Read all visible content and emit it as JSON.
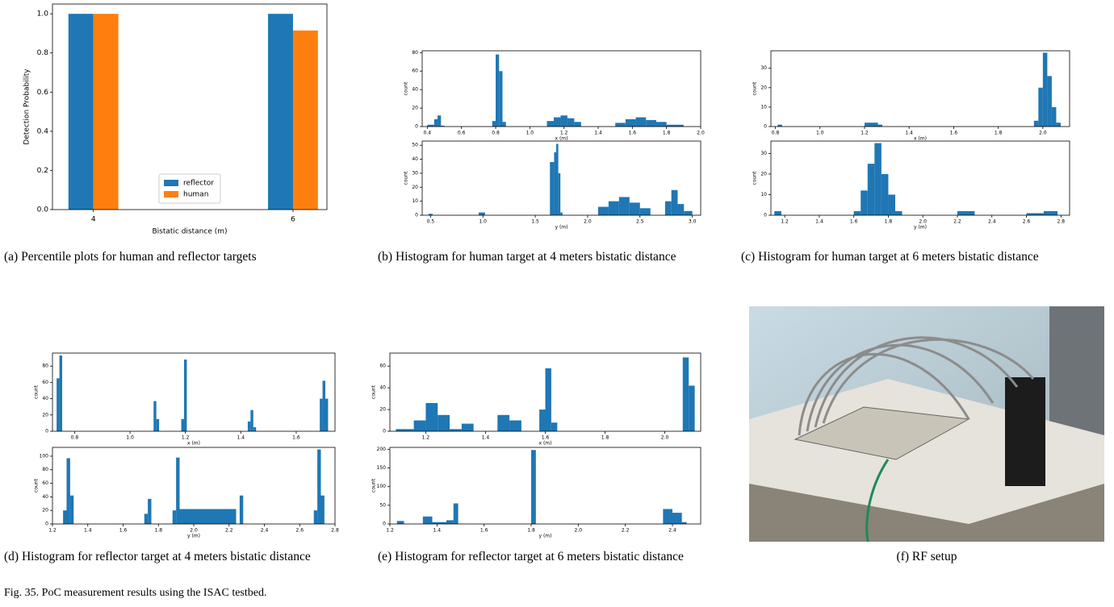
{
  "chart_data": [
    {
      "type": "bar",
      "xlabel": "Bistatic distance (m)",
      "ylabel": "Detection Probability",
      "x": [
        4,
        6
      ],
      "xlim": [
        3.59,
        6.34
      ],
      "xticks": [
        4,
        6
      ],
      "series": [
        {
          "name": "reflector",
          "color": "#1f77b4",
          "values": [
            1.0,
            1.0
          ]
        },
        {
          "name": "human",
          "color": "#ff7f0e",
          "values": [
            1.0,
            0.915
          ]
        }
      ],
      "ylim": [
        0,
        1.05
      ],
      "yticks": [
        {
          "value": 0,
          "label": "0.0"
        },
        0.2,
        0.4,
        0.6,
        0.8,
        {
          "value": 1,
          "label": "1.0"
        }
      ],
      "legend": "lower center"
    },
    {
      "type": "histogram",
      "xlabel": "x (m)",
      "ylabel": "count",
      "color": "#1f77b4",
      "bins": [
        0.4,
        0.44,
        0.46,
        0.48,
        0.5,
        0.78,
        0.8,
        0.82,
        0.84,
        0.86,
        1.1,
        1.14,
        1.18,
        1.22,
        1.26,
        1.3,
        1.5,
        1.56,
        1.62,
        1.68,
        1.74,
        1.8,
        1.9
      ],
      "counts": [
        2,
        8,
        12,
        1,
        0,
        6,
        78,
        60,
        5,
        0,
        6,
        10,
        12,
        9,
        5,
        0,
        4,
        8,
        10,
        7,
        5,
        2
      ],
      "xlim": [
        0.37,
        2.0
      ],
      "xticks": [
        0.4,
        0.6,
        0.8,
        {
          "value": 1,
          "label": "1.0"
        },
        1.2,
        1.4,
        1.6,
        1.8,
        {
          "value": 2,
          "label": "2.0"
        }
      ],
      "ylim": [
        0,
        82
      ],
      "yticks": [
        0,
        20,
        40,
        60,
        80
      ]
    },
    {
      "type": "histogram",
      "xlabel": "y (m)",
      "ylabel": "count",
      "color": "#1f77b4",
      "bins": [
        0.48,
        0.52,
        0.96,
        1.02,
        1.64,
        1.68,
        1.7,
        1.72,
        1.74,
        1.76,
        2.1,
        2.2,
        2.3,
        2.4,
        2.5,
        2.6,
        2.74,
        2.8,
        2.86,
        2.92,
        3.0
      ],
      "counts": [
        1,
        0,
        2,
        0,
        38,
        45,
        51,
        30,
        2,
        0,
        6,
        10,
        13,
        9,
        5,
        0,
        10,
        18,
        8,
        3
      ],
      "xlim": [
        0.42,
        3.08
      ],
      "xticks": [
        0.5,
        {
          "value": 1,
          "label": "1.0"
        },
        1.5,
        {
          "value": 2,
          "label": "2.0"
        },
        2.5,
        {
          "value": 3,
          "label": "3.0"
        }
      ],
      "ylim": [
        0,
        53
      ],
      "yticks": [
        0,
        10,
        20,
        30,
        40,
        50
      ]
    },
    {
      "type": "histogram",
      "xlabel": "x (m)",
      "ylabel": "count",
      "color": "#1f77b4",
      "bins": [
        0.81,
        0.83,
        1.2,
        1.26,
        1.28,
        1.96,
        1.98,
        2.0,
        2.02,
        2.04,
        2.06,
        2.08
      ],
      "counts": [
        1,
        0,
        2,
        1,
        0,
        3,
        20,
        38,
        26,
        10,
        2
      ],
      "xlim": [
        0.78,
        2.12
      ],
      "xticks": [
        0.8,
        {
          "value": 1,
          "label": "1.0"
        },
        1.2,
        1.4,
        1.6,
        1.8,
        {
          "value": 2,
          "label": "2.0"
        }
      ],
      "ylim": [
        0,
        39
      ],
      "yticks": [
        0,
        10,
        20,
        30
      ]
    },
    {
      "type": "histogram",
      "xlabel": "y (m)",
      "ylabel": "count",
      "color": "#1f77b4",
      "bins": [
        1.14,
        1.18,
        1.6,
        1.64,
        1.68,
        1.72,
        1.76,
        1.8,
        1.84,
        1.88,
        2.2,
        2.3,
        2.6,
        2.7,
        2.78
      ],
      "counts": [
        2,
        0,
        2,
        12,
        25,
        35,
        20,
        10,
        2,
        0,
        2,
        0,
        1,
        2
      ],
      "xlim": [
        1.12,
        2.85
      ],
      "xticks": [
        1.2,
        1.4,
        1.6,
        1.8,
        {
          "value": 2,
          "label": "2.0"
        },
        2.2,
        2.4,
        2.6,
        2.8
      ],
      "ylim": [
        0,
        36
      ],
      "yticks": [
        0,
        10,
        20,
        30
      ]
    },
    {
      "type": "histogram",
      "xlabel": "x (m)",
      "ylabel": "count",
      "color": "#1f77b4",
      "bins": [
        0.735,
        0.745,
        0.755,
        1.085,
        1.095,
        1.105,
        1.185,
        1.195,
        1.205,
        1.425,
        1.435,
        1.445,
        1.455,
        1.685,
        1.695,
        1.705,
        1.715
      ],
      "counts": [
        65,
        93,
        0,
        37,
        15,
        0,
        15,
        88,
        0,
        12,
        26,
        5,
        0,
        40,
        62,
        40
      ],
      "xlim": [
        0.72,
        1.74
      ],
      "xticks": [
        0.8,
        {
          "value": 1,
          "label": "1.0"
        },
        1.2,
        1.4,
        1.6
      ],
      "ylim": [
        0,
        96
      ],
      "yticks": [
        0,
        20,
        40,
        60,
        80
      ]
    },
    {
      "type": "histogram",
      "xlabel": "y (m)",
      "ylabel": "count",
      "color": "#1f77b4",
      "bins": [
        1.26,
        1.28,
        1.3,
        1.32,
        1.72,
        1.74,
        1.76,
        1.88,
        1.9,
        1.92,
        2.24,
        2.26,
        2.28,
        2.68,
        2.7,
        2.72,
        2.74
      ],
      "counts": [
        20,
        97,
        42,
        0,
        15,
        37,
        0,
        20,
        98,
        22,
        0,
        42,
        0,
        20,
        110,
        42
      ],
      "xlim": [
        1.2,
        2.8
      ],
      "xticks": [
        1.2,
        1.4,
        1.6,
        1.8,
        {
          "value": 2,
          "label": "2.0"
        },
        2.2,
        2.4,
        2.6,
        2.8
      ],
      "ylim": [
        0,
        113
      ],
      "yticks": [
        0,
        20,
        40,
        60,
        80,
        100
      ]
    },
    {
      "type": "histogram",
      "xlabel": "x (m)",
      "ylabel": "count",
      "color": "#1f77b4",
      "bins": [
        1.1,
        1.16,
        1.2,
        1.24,
        1.28,
        1.32,
        1.36,
        1.44,
        1.48,
        1.52,
        1.58,
        1.6,
        1.62,
        1.64,
        2.06,
        2.08,
        2.1
      ],
      "counts": [
        2,
        10,
        26,
        15,
        2,
        7,
        0,
        15,
        10,
        0,
        20,
        58,
        8,
        0,
        68,
        42
      ],
      "xlim": [
        1.08,
        2.12
      ],
      "xticks": [
        1.2,
        1.4,
        1.6,
        1.8,
        {
          "value": 2,
          "label": "2.0"
        }
      ],
      "ylim": [
        0,
        72
      ],
      "yticks": [
        0,
        20,
        40,
        60
      ]
    },
    {
      "type": "histogram",
      "xlabel": "y (m)",
      "ylabel": "count",
      "color": "#1f77b4",
      "bins": [
        1.23,
        1.26,
        1.34,
        1.38,
        1.44,
        1.47,
        1.49,
        1.8,
        1.82,
        2.36,
        2.4,
        2.44,
        2.46
      ],
      "counts": [
        8,
        0,
        20,
        5,
        10,
        55,
        0,
        198,
        0,
        40,
        30,
        5
      ],
      "xlim": [
        1.2,
        2.52
      ],
      "xticks": [
        1.2,
        1.4,
        1.6,
        1.8,
        {
          "value": 2,
          "label": "2.0"
        },
        2.2,
        2.4
      ],
      "ylim": [
        0,
        205
      ],
      "yticks": [
        0,
        50,
        100,
        150,
        200
      ]
    }
  ],
  "captions": [
    "(a) Percentile plots for human and reflector targets",
    "(b) Histogram for human target at 4 meters bistatic distance",
    "(c) Histogram for human target at 6 meters bistatic distance",
    "(d) Histogram for reflector target at 4 meters bistatic distance",
    "(e) Histogram for reflector target at 6 meters bistatic distance",
    "(f) RF setup"
  ],
  "figure_caption": "Fig. 35.  PoC measurement results using the ISAC testbed."
}
